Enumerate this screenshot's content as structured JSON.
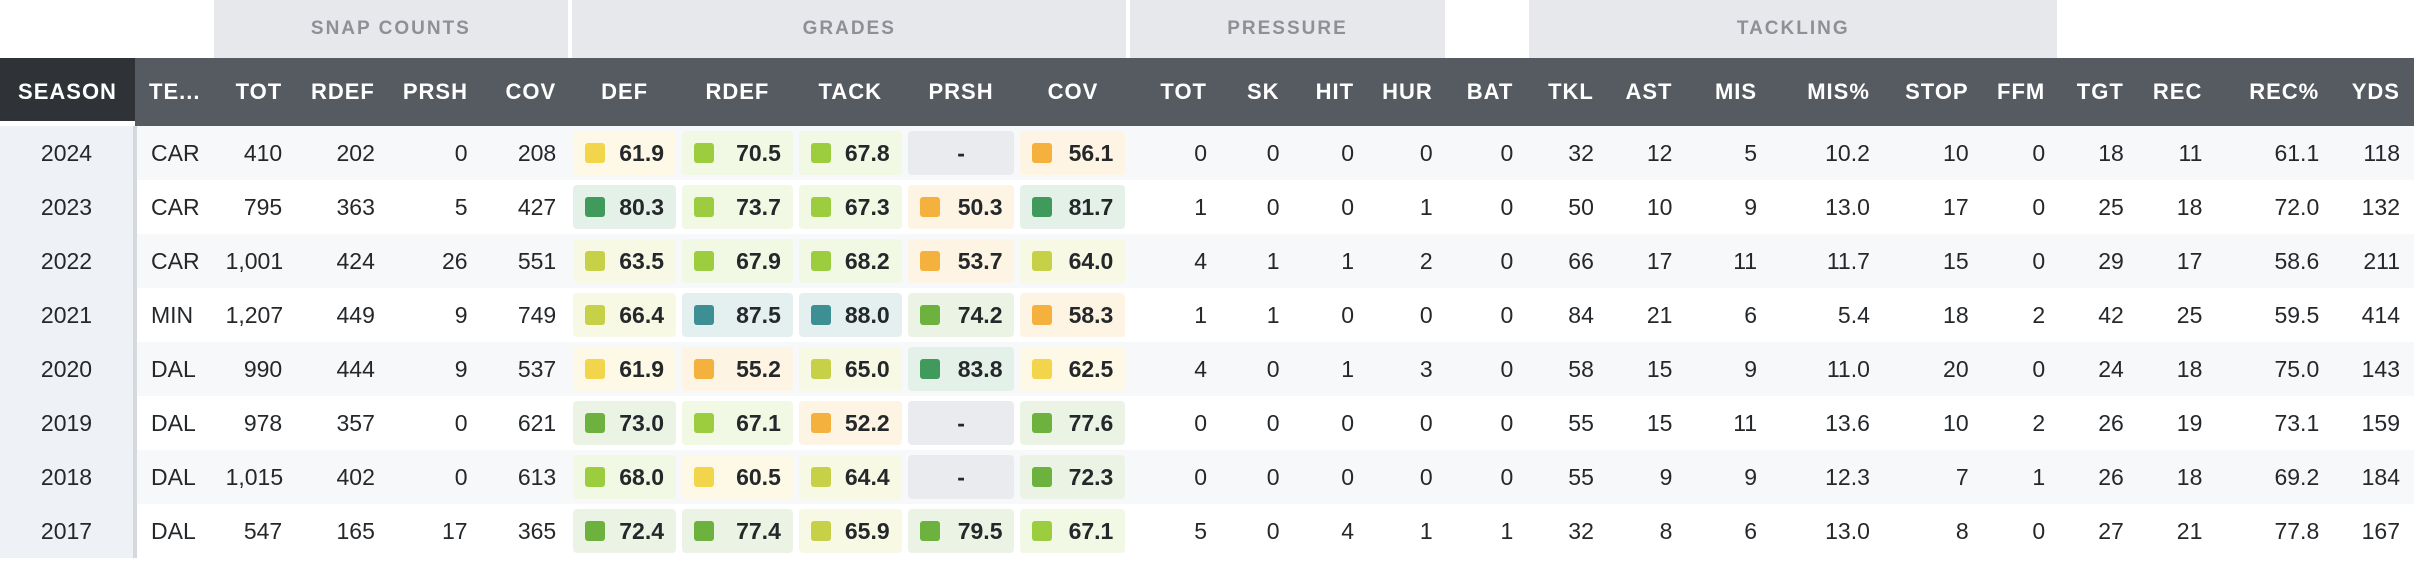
{
  "groups": {
    "snap_counts": "SNAP COUNTS",
    "grades": "GRADES",
    "pressure": "PRESSURE",
    "tackling": "TACKLING"
  },
  "columns": [
    {
      "key": "season",
      "label": "SEASON"
    },
    {
      "key": "team",
      "label": "TE..."
    },
    {
      "key": "snap_tot",
      "label": "TOT"
    },
    {
      "key": "snap_rdef",
      "label": "RDEF"
    },
    {
      "key": "snap_prsh",
      "label": "PRSH"
    },
    {
      "key": "snap_cov",
      "label": "COV"
    },
    {
      "key": "g_def",
      "label": "DEF"
    },
    {
      "key": "g_rdef",
      "label": "RDEF"
    },
    {
      "key": "g_tack",
      "label": "TACK"
    },
    {
      "key": "g_prsh",
      "label": "PRSH"
    },
    {
      "key": "g_cov",
      "label": "COV"
    },
    {
      "key": "p_tot",
      "label": "TOT"
    },
    {
      "key": "p_sk",
      "label": "SK"
    },
    {
      "key": "p_hit",
      "label": "HIT"
    },
    {
      "key": "p_hur",
      "label": "HUR"
    },
    {
      "key": "bat",
      "label": "BAT"
    },
    {
      "key": "tkl",
      "label": "TKL"
    },
    {
      "key": "ast",
      "label": "AST"
    },
    {
      "key": "mis",
      "label": "MIS"
    },
    {
      "key": "mis_pct",
      "label": "MIS%"
    },
    {
      "key": "stop",
      "label": "STOP"
    },
    {
      "key": "ffm",
      "label": "FFM"
    },
    {
      "key": "tgt",
      "label": "TGT"
    },
    {
      "key": "rec",
      "label": "REC"
    },
    {
      "key": "rec_pct",
      "label": "REC%"
    },
    {
      "key": "yds",
      "label": "YDS"
    }
  ],
  "grade_colors": {
    "yellow": "#f2d54a",
    "orange": "#f5b13d",
    "lime": "#c6d147",
    "light_green": "#9ccd3e",
    "green": "#6db23f",
    "dark_green": "#3f9a5c",
    "teal": "#3d8f93"
  },
  "rows": [
    {
      "season": "2024",
      "team": "CAR",
      "snap_tot": "410",
      "snap_rdef": "202",
      "snap_prsh": "0",
      "snap_cov": "208",
      "g_def": {
        "v": "61.9",
        "c": "yellow"
      },
      "g_rdef": {
        "v": "70.5",
        "c": "light_green"
      },
      "g_tack": {
        "v": "67.8",
        "c": "light_green"
      },
      "g_prsh": {
        "v": "-",
        "c": ""
      },
      "g_cov": {
        "v": "56.1",
        "c": "orange"
      },
      "p_tot": "0",
      "p_sk": "0",
      "p_hit": "0",
      "p_hur": "0",
      "bat": "0",
      "tkl": "32",
      "ast": "12",
      "mis": "5",
      "mis_pct": "10.2",
      "stop": "10",
      "ffm": "0",
      "tgt": "18",
      "rec": "11",
      "rec_pct": "61.1",
      "yds": "118"
    },
    {
      "season": "2023",
      "team": "CAR",
      "snap_tot": "795",
      "snap_rdef": "363",
      "snap_prsh": "5",
      "snap_cov": "427",
      "g_def": {
        "v": "80.3",
        "c": "dark_green"
      },
      "g_rdef": {
        "v": "73.7",
        "c": "light_green"
      },
      "g_tack": {
        "v": "67.3",
        "c": "light_green"
      },
      "g_prsh": {
        "v": "50.3",
        "c": "orange"
      },
      "g_cov": {
        "v": "81.7",
        "c": "dark_green"
      },
      "p_tot": "1",
      "p_sk": "0",
      "p_hit": "0",
      "p_hur": "1",
      "bat": "0",
      "tkl": "50",
      "ast": "10",
      "mis": "9",
      "mis_pct": "13.0",
      "stop": "17",
      "ffm": "0",
      "tgt": "25",
      "rec": "18",
      "rec_pct": "72.0",
      "yds": "132"
    },
    {
      "season": "2022",
      "team": "CAR",
      "snap_tot": "1,001",
      "snap_rdef": "424",
      "snap_prsh": "26",
      "snap_cov": "551",
      "g_def": {
        "v": "63.5",
        "c": "lime"
      },
      "g_rdef": {
        "v": "67.9",
        "c": "light_green"
      },
      "g_tack": {
        "v": "68.2",
        "c": "light_green"
      },
      "g_prsh": {
        "v": "53.7",
        "c": "orange"
      },
      "g_cov": {
        "v": "64.0",
        "c": "lime"
      },
      "p_tot": "4",
      "p_sk": "1",
      "p_hit": "1",
      "p_hur": "2",
      "bat": "0",
      "tkl": "66",
      "ast": "17",
      "mis": "11",
      "mis_pct": "11.7",
      "stop": "15",
      "ffm": "0",
      "tgt": "29",
      "rec": "17",
      "rec_pct": "58.6",
      "yds": "211"
    },
    {
      "season": "2021",
      "team": "MIN",
      "snap_tot": "1,207",
      "snap_rdef": "449",
      "snap_prsh": "9",
      "snap_cov": "749",
      "g_def": {
        "v": "66.4",
        "c": "lime"
      },
      "g_rdef": {
        "v": "87.5",
        "c": "teal"
      },
      "g_tack": {
        "v": "88.0",
        "c": "teal"
      },
      "g_prsh": {
        "v": "74.2",
        "c": "green"
      },
      "g_cov": {
        "v": "58.3",
        "c": "orange"
      },
      "p_tot": "1",
      "p_sk": "1",
      "p_hit": "0",
      "p_hur": "0",
      "bat": "0",
      "tkl": "84",
      "ast": "21",
      "mis": "6",
      "mis_pct": "5.4",
      "stop": "18",
      "ffm": "2",
      "tgt": "42",
      "rec": "25",
      "rec_pct": "59.5",
      "yds": "414"
    },
    {
      "season": "2020",
      "team": "DAL",
      "snap_tot": "990",
      "snap_rdef": "444",
      "snap_prsh": "9",
      "snap_cov": "537",
      "g_def": {
        "v": "61.9",
        "c": "yellow"
      },
      "g_rdef": {
        "v": "55.2",
        "c": "orange"
      },
      "g_tack": {
        "v": "65.0",
        "c": "lime"
      },
      "g_prsh": {
        "v": "83.8",
        "c": "dark_green"
      },
      "g_cov": {
        "v": "62.5",
        "c": "yellow"
      },
      "p_tot": "4",
      "p_sk": "0",
      "p_hit": "1",
      "p_hur": "3",
      "bat": "0",
      "tkl": "58",
      "ast": "15",
      "mis": "9",
      "mis_pct": "11.0",
      "stop": "20",
      "ffm": "0",
      "tgt": "24",
      "rec": "18",
      "rec_pct": "75.0",
      "yds": "143"
    },
    {
      "season": "2019",
      "team": "DAL",
      "snap_tot": "978",
      "snap_rdef": "357",
      "snap_prsh": "0",
      "snap_cov": "621",
      "g_def": {
        "v": "73.0",
        "c": "green"
      },
      "g_rdef": {
        "v": "67.1",
        "c": "light_green"
      },
      "g_tack": {
        "v": "52.2",
        "c": "orange"
      },
      "g_prsh": {
        "v": "-",
        "c": ""
      },
      "g_cov": {
        "v": "77.6",
        "c": "green"
      },
      "p_tot": "0",
      "p_sk": "0",
      "p_hit": "0",
      "p_hur": "0",
      "bat": "0",
      "tkl": "55",
      "ast": "15",
      "mis": "11",
      "mis_pct": "13.6",
      "stop": "10",
      "ffm": "2",
      "tgt": "26",
      "rec": "19",
      "rec_pct": "73.1",
      "yds": "159"
    },
    {
      "season": "2018",
      "team": "DAL",
      "snap_tot": "1,015",
      "snap_rdef": "402",
      "snap_prsh": "0",
      "snap_cov": "613",
      "g_def": {
        "v": "68.0",
        "c": "light_green"
      },
      "g_rdef": {
        "v": "60.5",
        "c": "yellow"
      },
      "g_tack": {
        "v": "64.4",
        "c": "lime"
      },
      "g_prsh": {
        "v": "-",
        "c": ""
      },
      "g_cov": {
        "v": "72.3",
        "c": "green"
      },
      "p_tot": "0",
      "p_sk": "0",
      "p_hit": "0",
      "p_hur": "0",
      "bat": "0",
      "tkl": "55",
      "ast": "9",
      "mis": "9",
      "mis_pct": "12.3",
      "stop": "7",
      "ffm": "1",
      "tgt": "26",
      "rec": "18",
      "rec_pct": "69.2",
      "yds": "184"
    },
    {
      "season": "2017",
      "team": "DAL",
      "snap_tot": "547",
      "snap_rdef": "165",
      "snap_prsh": "17",
      "snap_cov": "365",
      "g_def": {
        "v": "72.4",
        "c": "green"
      },
      "g_rdef": {
        "v": "77.4",
        "c": "green"
      },
      "g_tack": {
        "v": "65.9",
        "c": "lime"
      },
      "g_prsh": {
        "v": "79.5",
        "c": "green"
      },
      "g_cov": {
        "v": "67.1",
        "c": "light_green"
      },
      "p_tot": "5",
      "p_sk": "0",
      "p_hit": "4",
      "p_hur": "1",
      "bat": "1",
      "tkl": "32",
      "ast": "8",
      "mis": "6",
      "mis_pct": "13.0",
      "stop": "8",
      "ffm": "0",
      "tgt": "27",
      "rec": "21",
      "rec_pct": "77.8",
      "yds": "167"
    }
  ]
}
